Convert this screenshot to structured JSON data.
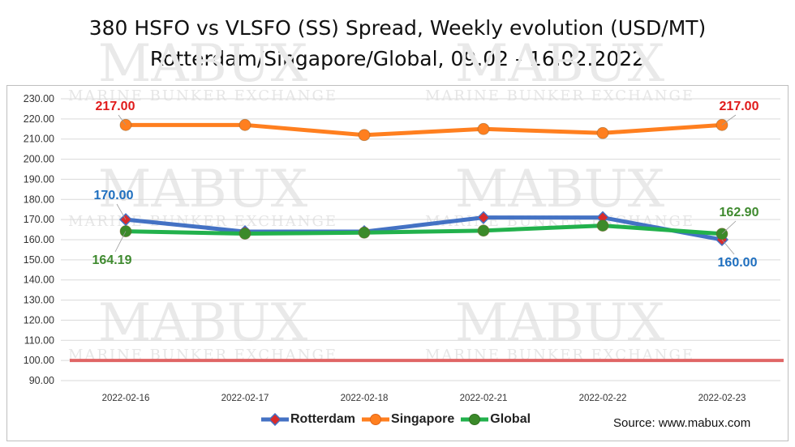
{
  "chart_data": {
    "type": "line",
    "title": "380 HSFO vs VLSFO (SS) Spread, Weekly evolution (USD/MT)",
    "subtitle": "Rotterdam/Singapore/Global, 09.02 - 16.02.2022",
    "categories": [
      "2022-02-16",
      "2022-02-17",
      "2022-02-18",
      "2022-02-21",
      "2022-02-22",
      "2022-02-23"
    ],
    "y_ticks": [
      "90.00",
      "100.00",
      "110.00",
      "120.00",
      "130.00",
      "140.00",
      "150.00",
      "160.00",
      "170.00",
      "180.00",
      "190.00",
      "200.00",
      "210.00",
      "220.00",
      "230.00"
    ],
    "ylim": [
      90,
      230
    ],
    "grid": true,
    "legend_position": "bottom",
    "reference_line": {
      "value": 100,
      "color": "#e06666"
    },
    "series": [
      {
        "name": "Rotterdam",
        "color": "#4472c4",
        "marker_color": "#d92b2b",
        "marker": "diamond",
        "values": [
          170,
          164,
          164,
          171,
          171,
          160
        ],
        "labels": [
          {
            "index": 0,
            "text": "170.00",
            "color": "#1f6fbf"
          },
          {
            "index": 5,
            "text": "160.00",
            "color": "#1f6fbf"
          }
        ]
      },
      {
        "name": "Singapore",
        "color": "#ff7f1f",
        "marker_color": "#ff7f1f",
        "marker": "circle",
        "values": [
          217,
          217,
          212,
          215,
          213,
          217
        ],
        "labels": [
          {
            "index": 0,
            "text": "217.00",
            "color": "#e01b1b"
          },
          {
            "index": 5,
            "text": "217.00",
            "color": "#e01b1b"
          }
        ]
      },
      {
        "name": "Global",
        "color": "#22b14c",
        "marker_color": "#3b8a2a",
        "marker": "circle",
        "values": [
          164.19,
          163,
          163.5,
          164.5,
          167,
          162.9
        ],
        "labels": [
          {
            "index": 0,
            "text": "164.19",
            "color": "#3f8a2f"
          },
          {
            "index": 5,
            "text": "162.90",
            "color": "#3f8a2f"
          }
        ]
      }
    ]
  },
  "watermark": {
    "brand": "MABUX",
    "tagline": "MARINE BUNKER EXCHANGE"
  },
  "source": "Source: www.mabux.com"
}
